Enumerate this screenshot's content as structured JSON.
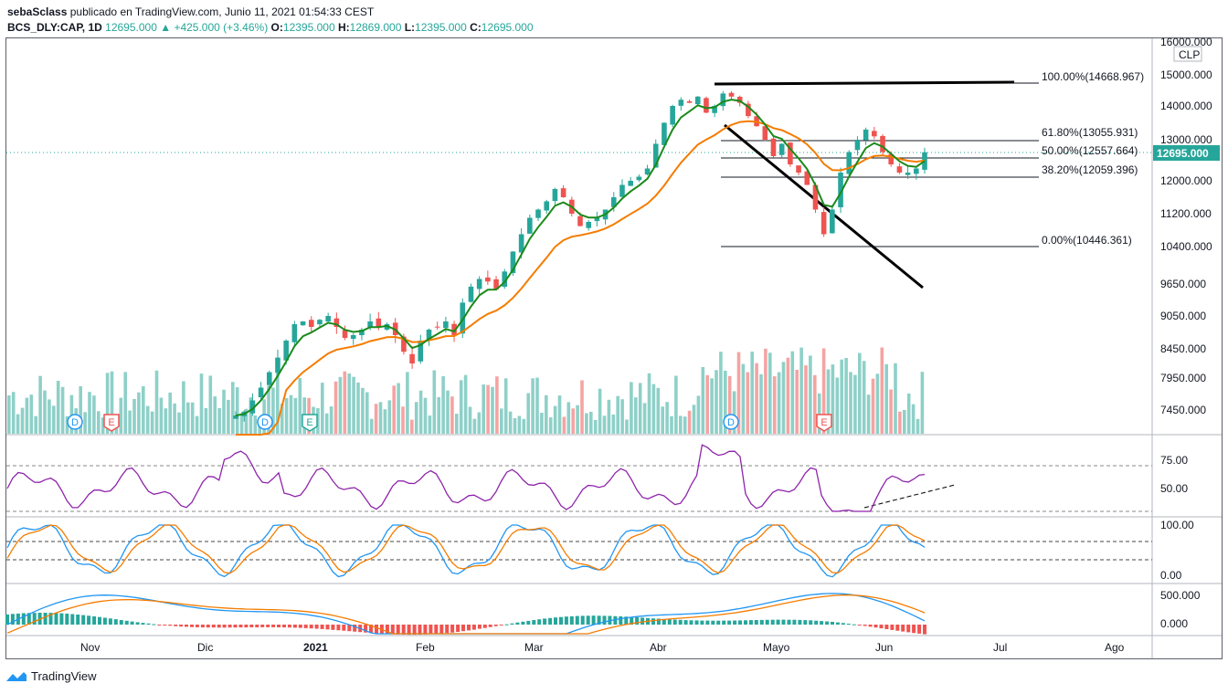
{
  "header": {
    "author": "sebaSclass",
    "published": "publicado en TradingView.com, Junio 11, 2021 01:54:33 CEST",
    "symbol": "BCS_DLY:CAP, 1D",
    "last": "12695.000",
    "change": "▲ +425.000 (+3.46%)",
    "o_label": "O:",
    "o": "12395.000",
    "h_label": "H:",
    "h": "12869.000",
    "l_label": "L:",
    "l": "12395.000",
    "c_label": "C:",
    "c": "12695.000"
  },
  "brand": "TradingView",
  "colors": {
    "up": "#26a69a",
    "down": "#ef5350",
    "ema_fast": "#1b8a1b",
    "ema_slow": "#f57c00",
    "rsi": "#8e24aa",
    "stoch_k": "#2196f3",
    "stoch_d": "#f57c00",
    "price_tag": "#26a69a"
  },
  "chart_data": {
    "type": "candlestick",
    "currency": "CLP",
    "x_axis": [
      "Nov",
      "Dic",
      "2021",
      "Feb",
      "Mar",
      "Abr",
      "Mayo",
      "Jun",
      "Jul",
      "Ago"
    ],
    "y_ticks": [
      "16000.000",
      "15000.000",
      "14000.000",
      "13000.000",
      "12000.000",
      "11200.000",
      "10400.000",
      "9650.000",
      "9050.000",
      "8450.000",
      "7950.000",
      "7450.000"
    ],
    "last_price_label": "12695.000",
    "fibonacci": [
      {
        "label": "100.00%(14668.967)",
        "value": 14668.967
      },
      {
        "label": "61.80%(13055.931)",
        "value": 13055.931
      },
      {
        "label": "50.00%(12557.664)",
        "value": 12557.664
      },
      {
        "label": "38.20%(12059.396)",
        "value": 12059.396
      },
      {
        "label": "0.00%(10446.361)",
        "value": 10446.361
      }
    ],
    "events": [
      "D",
      "E",
      "D",
      "E",
      "D",
      "E"
    ],
    "rsi": {
      "ticks": [
        "75.00",
        "50.00"
      ]
    },
    "stoch": {
      "ticks": [
        "100.00",
        "0.00"
      ]
    },
    "macd": {
      "ticks": [
        "500.000",
        "0.000"
      ]
    },
    "close_path": [
      7350,
      7420,
      7600,
      7800,
      8050,
      8300,
      8600,
      8900,
      8950,
      8850,
      8980,
      9050,
      8850,
      8650,
      8700,
      8800,
      8950,
      8850,
      8900,
      8700,
      8400,
      8200,
      8600,
      8800,
      8850,
      8950,
      8700,
      9300,
      9600,
      9750,
      9700,
      9550,
      9900,
      10300,
      10700,
      11100,
      11300,
      11500,
      11800,
      11600,
      11200,
      10900,
      11000,
      11100,
      11300,
      11600,
      11900,
      12000,
      12100,
      12300,
      12900,
      13500,
      14000,
      14200,
      14100,
      14300,
      13800,
      14000,
      14400,
      14300,
      14100,
      13700,
      13400,
      13000,
      12600,
      12900,
      12400,
      12200,
      11900,
      11300,
      10700,
      11300,
      12200,
      12700,
      13000,
      13300,
      13100,
      12700,
      12400,
      12200,
      12200,
      12300,
      12695
    ]
  }
}
